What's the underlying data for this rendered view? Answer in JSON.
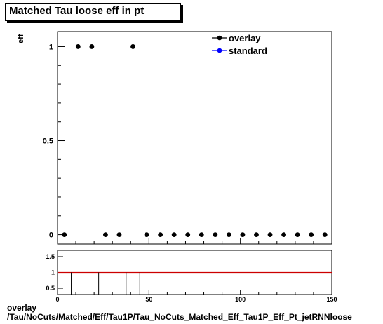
{
  "header": {
    "title": "Matched Tau loose eff in pt"
  },
  "footer": {
    "line1": "overlay",
    "line2": "/Tau/NoCuts/Matched/Eff/Tau1P/Tau_NoCuts_Matched_Eff_Tau1P_Eff_Pt_jetRNNloose"
  },
  "colors": {
    "overlay": "#000000",
    "standard": "#0000ff",
    "ratio_line": "#cc0000"
  },
  "chart_data": [
    {
      "type": "scatter",
      "title": "Matched Tau loose eff in pt",
      "ylabel": "eff",
      "xlabel": "",
      "xlim": [
        0,
        150
      ],
      "ylim": [
        -0.05,
        1.08
      ],
      "yticks": [
        0,
        0.5,
        1
      ],
      "ytick_labels": [
        "0",
        "0.5",
        "1"
      ],
      "legend": "top-right",
      "series": [
        {
          "name": "overlay",
          "color": "#000000",
          "x": [
            3.75,
            11.25,
            18.75,
            26.25,
            33.75,
            41.25,
            48.75,
            56.25,
            63.75,
            71.25,
            78.75,
            86.25,
            93.75,
            101.25,
            108.75,
            116.25,
            123.75,
            131.25,
            138.75,
            146.25
          ],
          "y": [
            0,
            1,
            1,
            0,
            0,
            1,
            0,
            0,
            0,
            0,
            0,
            0,
            0,
            0,
            0,
            0,
            0,
            0,
            0,
            0
          ]
        },
        {
          "name": "standard",
          "color": "#0000ff",
          "x": [],
          "y": []
        }
      ]
    },
    {
      "type": "line",
      "xlim": [
        0,
        150
      ],
      "ylim": [
        0.3,
        1.7
      ],
      "xticks": [
        0,
        50,
        100,
        150
      ],
      "xtick_labels": [
        "0",
        "50",
        "100",
        "150"
      ],
      "yticks": [
        0.5,
        1,
        1.5
      ],
      "ytick_labels": [
        "0.5",
        "1",
        "1.5"
      ],
      "reference_line": 1,
      "drop_lines_x": [
        7.5,
        22.5,
        37.5,
        45
      ]
    }
  ]
}
